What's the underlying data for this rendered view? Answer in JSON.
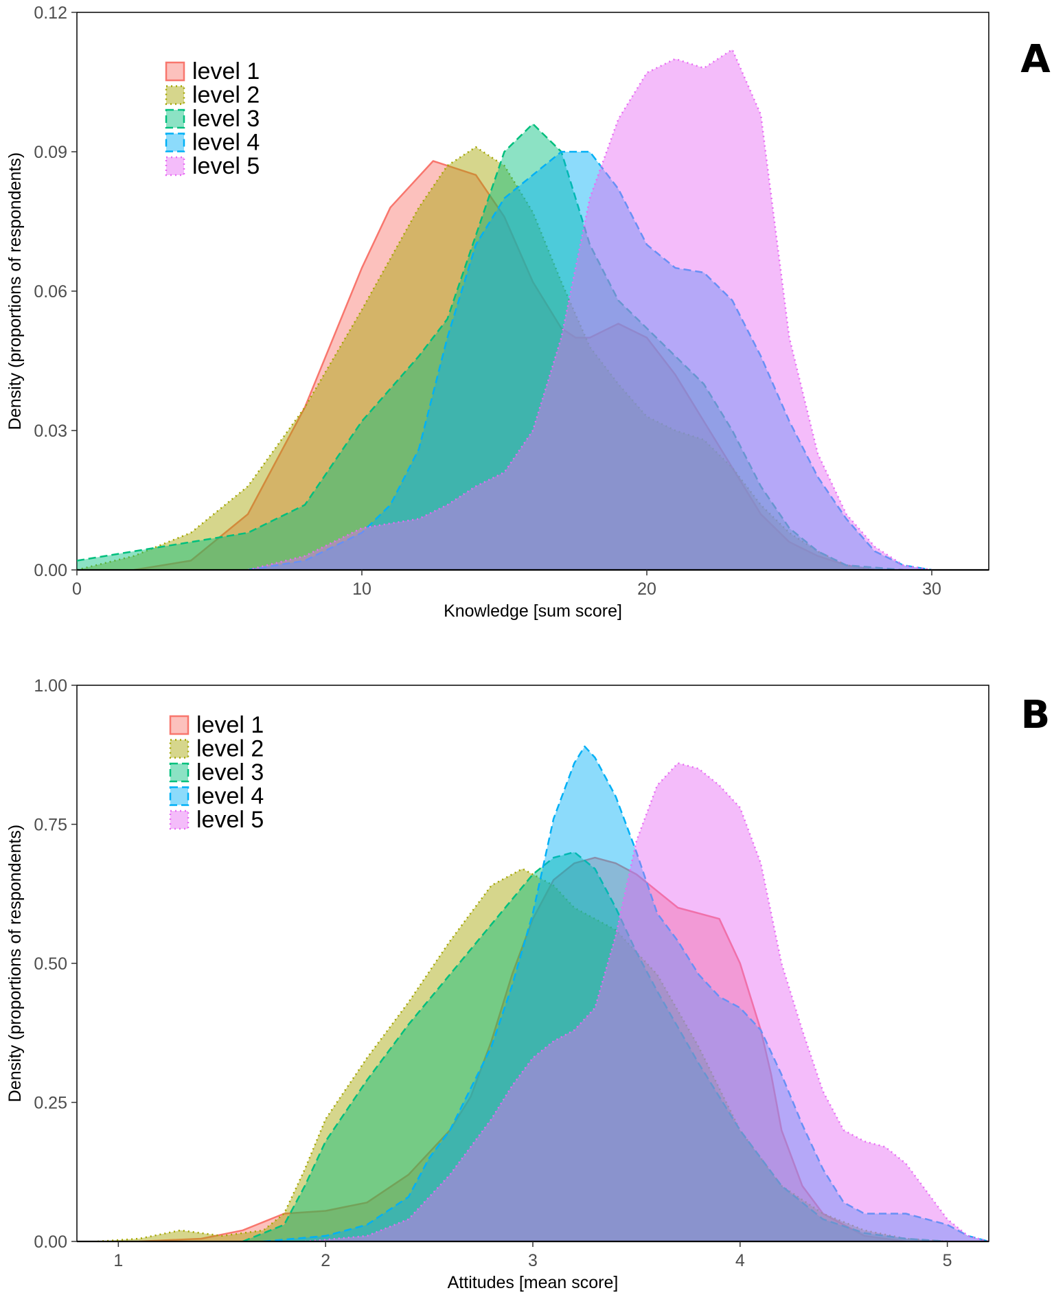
{
  "chart_data": [
    {
      "type": "area",
      "panel_label": "A",
      "xlabel": "Knowledge [sum score]",
      "ylabel": "Density (proportions of respondents)",
      "xlim": [
        0,
        32
      ],
      "ylim": [
        0,
        0.12
      ],
      "xticks": [
        0,
        10,
        20,
        30
      ],
      "xtick_labels": [
        "0",
        "10",
        "20",
        "30"
      ],
      "yticks": [
        0,
        0.03,
        0.06,
        0.09,
        0.12
      ],
      "ytick_labels": [
        "0.00",
        "0.03",
        "0.06",
        "0.09",
        "0.12"
      ],
      "legend_position": "top-left",
      "series": [
        {
          "name": "level 1",
          "color": "#F8766D",
          "dash": "solid",
          "x": [
            2,
            4,
            6,
            8,
            10,
            11,
            12.5,
            14,
            15,
            16,
            17,
            17.5,
            18,
            19,
            20,
            21,
            22,
            23,
            24,
            25,
            26,
            27,
            28
          ],
          "y": [
            0,
            0.002,
            0.012,
            0.035,
            0.065,
            0.078,
            0.088,
            0.085,
            0.076,
            0.062,
            0.052,
            0.05,
            0.05,
            0.053,
            0.05,
            0.042,
            0.032,
            0.022,
            0.012,
            0.006,
            0.003,
            0.001,
            0
          ]
        },
        {
          "name": "level 2",
          "color": "#A3A500",
          "dash": "dotted",
          "x": [
            0,
            2,
            4,
            6,
            8,
            10,
            12,
            13,
            14,
            15,
            16,
            17,
            18,
            19,
            20,
            21,
            22,
            23,
            24,
            25,
            26,
            27,
            28
          ],
          "y": [
            0,
            0.003,
            0.008,
            0.018,
            0.035,
            0.056,
            0.078,
            0.087,
            0.091,
            0.087,
            0.077,
            0.062,
            0.048,
            0.04,
            0.033,
            0.03,
            0.028,
            0.022,
            0.014,
            0.008,
            0.004,
            0.001,
            0
          ]
        },
        {
          "name": "level 3",
          "color": "#00BF7D",
          "dash": "dashed",
          "x": [
            0,
            2,
            4,
            6,
            8,
            10,
            12,
            13,
            14,
            15,
            16,
            17,
            18,
            19,
            20,
            21,
            22,
            23,
            24,
            25,
            26,
            27,
            28,
            29
          ],
          "y": [
            0.002,
            0.004,
            0.006,
            0.008,
            0.014,
            0.032,
            0.046,
            0.054,
            0.072,
            0.09,
            0.096,
            0.09,
            0.07,
            0.058,
            0.052,
            0.046,
            0.04,
            0.03,
            0.018,
            0.009,
            0.004,
            0.001,
            0.0005,
            0
          ]
        },
        {
          "name": "level 4",
          "color": "#00B0F6",
          "dash": "dashed",
          "x": [
            6,
            8,
            10,
            11,
            12,
            13,
            14,
            15,
            16,
            17,
            18,
            19,
            20,
            21,
            22,
            23,
            24,
            25,
            26,
            27,
            28,
            29,
            30
          ],
          "y": [
            0,
            0.002,
            0.008,
            0.014,
            0.026,
            0.05,
            0.07,
            0.08,
            0.085,
            0.09,
            0.09,
            0.082,
            0.07,
            0.065,
            0.064,
            0.058,
            0.046,
            0.032,
            0.02,
            0.011,
            0.004,
            0.001,
            0
          ]
        },
        {
          "name": "level 5",
          "color": "#E76BF3",
          "dash": "dotted",
          "x": [
            6,
            8,
            10,
            12,
            13,
            14,
            15,
            16,
            17,
            17.5,
            18,
            19,
            20,
            21,
            22,
            23,
            24,
            25,
            26,
            27,
            28,
            29,
            30
          ],
          "y": [
            0,
            0.003,
            0.009,
            0.011,
            0.014,
            0.018,
            0.021,
            0.03,
            0.05,
            0.065,
            0.08,
            0.097,
            0.107,
            0.11,
            0.108,
            0.112,
            0.098,
            0.05,
            0.025,
            0.012,
            0.005,
            0.001,
            0
          ]
        }
      ]
    },
    {
      "type": "area",
      "panel_label": "B",
      "xlabel": "Attitudes [mean score]",
      "ylabel": "Density (proportions of respondents)",
      "xlim": [
        0.8,
        5.2
      ],
      "ylim": [
        0,
        1.0
      ],
      "xticks": [
        1,
        2,
        3,
        4,
        5
      ],
      "xtick_labels": [
        "1",
        "2",
        "3",
        "4",
        "5"
      ],
      "yticks": [
        0,
        0.25,
        0.5,
        0.75,
        1.0
      ],
      "ytick_labels": [
        "0.00",
        "0.25",
        "0.50",
        "0.75",
        "1.00"
      ],
      "legend_position": "top-left",
      "series": [
        {
          "name": "level 1",
          "color": "#F8766D",
          "dash": "solid",
          "x": [
            1.1,
            1.4,
            1.6,
            1.8,
            2.0,
            2.2,
            2.4,
            2.6,
            2.7,
            2.8,
            2.9,
            3.0,
            3.1,
            3.2,
            3.3,
            3.4,
            3.5,
            3.6,
            3.7,
            3.8,
            3.9,
            4.0,
            4.1,
            4.15,
            4.2,
            4.3,
            4.4,
            4.5,
            4.6,
            4.7,
            4.8
          ],
          "y": [
            0,
            0.005,
            0.02,
            0.05,
            0.055,
            0.07,
            0.12,
            0.2,
            0.26,
            0.36,
            0.48,
            0.58,
            0.65,
            0.68,
            0.69,
            0.68,
            0.66,
            0.63,
            0.6,
            0.59,
            0.58,
            0.5,
            0.38,
            0.3,
            0.2,
            0.1,
            0.05,
            0.03,
            0.01,
            0.005,
            0
          ]
        },
        {
          "name": "level 2",
          "color": "#A3A500",
          "dash": "dotted",
          "x": [
            0.9,
            1.1,
            1.3,
            1.5,
            1.7,
            1.8,
            1.9,
            2.0,
            2.2,
            2.4,
            2.6,
            2.8,
            2.95,
            3.1,
            3.2,
            3.4,
            3.6,
            3.8,
            4.0,
            4.2,
            4.4,
            4.6,
            4.8,
            5.0
          ],
          "y": [
            0,
            0.005,
            0.02,
            0.01,
            0.02,
            0.05,
            0.13,
            0.22,
            0.33,
            0.43,
            0.54,
            0.64,
            0.67,
            0.64,
            0.6,
            0.56,
            0.48,
            0.35,
            0.2,
            0.1,
            0.05,
            0.02,
            0.005,
            0
          ]
        },
        {
          "name": "level 3",
          "color": "#00BF7D",
          "dash": "dashed",
          "x": [
            1.6,
            1.8,
            1.9,
            2.0,
            2.2,
            2.4,
            2.6,
            2.8,
            3.0,
            3.1,
            3.2,
            3.3,
            3.4,
            3.5,
            3.6,
            3.8,
            4.0,
            4.2,
            4.4,
            4.6,
            4.8,
            5.0
          ],
          "y": [
            0,
            0.03,
            0.1,
            0.18,
            0.29,
            0.39,
            0.48,
            0.57,
            0.66,
            0.69,
            0.7,
            0.67,
            0.6,
            0.52,
            0.45,
            0.32,
            0.2,
            0.1,
            0.04,
            0.015,
            0.005,
            0
          ]
        },
        {
          "name": "level 4",
          "color": "#00B0F6",
          "dash": "dashed",
          "x": [
            1.7,
            2.0,
            2.2,
            2.4,
            2.5,
            2.6,
            2.8,
            2.9,
            3.0,
            3.1,
            3.2,
            3.25,
            3.3,
            3.4,
            3.5,
            3.6,
            3.7,
            3.8,
            3.9,
            4.0,
            4.1,
            4.2,
            4.3,
            4.4,
            4.5,
            4.6,
            4.7,
            4.8,
            4.9,
            5.0,
            5.1,
            5.2
          ],
          "y": [
            0,
            0.01,
            0.03,
            0.08,
            0.15,
            0.2,
            0.35,
            0.46,
            0.59,
            0.76,
            0.86,
            0.89,
            0.87,
            0.8,
            0.7,
            0.59,
            0.54,
            0.48,
            0.44,
            0.42,
            0.38,
            0.3,
            0.21,
            0.13,
            0.07,
            0.05,
            0.05,
            0.05,
            0.04,
            0.03,
            0.01,
            0
          ]
        },
        {
          "name": "level 5",
          "color": "#E76BF3",
          "dash": "dotted",
          "x": [
            1.9,
            2.2,
            2.4,
            2.6,
            2.8,
            2.9,
            3.0,
            3.1,
            3.2,
            3.3,
            3.4,
            3.5,
            3.6,
            3.7,
            3.8,
            3.9,
            4.0,
            4.1,
            4.2,
            4.3,
            4.4,
            4.5,
            4.6,
            4.7,
            4.8,
            4.9,
            5.0,
            5.1,
            5.2
          ],
          "y": [
            0,
            0.01,
            0.04,
            0.12,
            0.22,
            0.28,
            0.33,
            0.36,
            0.38,
            0.42,
            0.55,
            0.72,
            0.82,
            0.86,
            0.85,
            0.82,
            0.78,
            0.68,
            0.5,
            0.38,
            0.27,
            0.2,
            0.18,
            0.17,
            0.14,
            0.09,
            0.04,
            0.01,
            0
          ]
        }
      ]
    }
  ]
}
